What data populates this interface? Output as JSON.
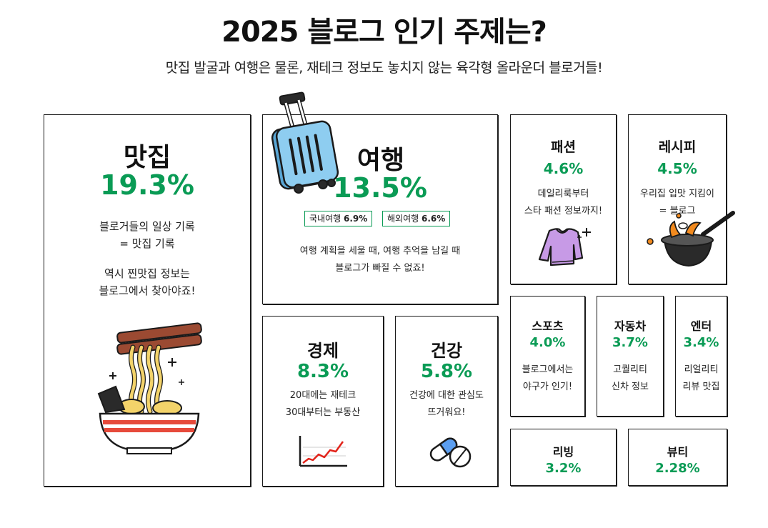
{
  "header": {
    "title": "2025 블로그 인기 주제는?",
    "subtitle": "맛집 발굴과 여행은 물론, 재테크 정보도 놓치지 않는 육각형 올라운더 블로거들!"
  },
  "cards": {
    "food": {
      "name": "맛집",
      "pct": "19.3%",
      "desc1": "블로거들의 일상 기록",
      "desc2": "= 맛집 기록",
      "desc3": "역시 찐맛집 정보는",
      "desc4": "블로그에서 찾아야죠!"
    },
    "travel": {
      "name": "여행",
      "pct": "13.5%",
      "chip1_label": "국내여행",
      "chip1_value": "6.9%",
      "chip2_label": "해외여행",
      "chip2_value": "6.6%",
      "desc1": "여행 계획을 세울 때, 여행 추억을 남길 때",
      "desc2": "블로그가 빠질 수 없죠!"
    },
    "economy": {
      "name": "경제",
      "pct": "8.3%",
      "desc1": "20대에는 재테크",
      "desc2": "30대부터는 부동산"
    },
    "health": {
      "name": "건강",
      "pct": "5.8%",
      "desc1": "건강에 대한 관심도",
      "desc2": "뜨거워요!"
    },
    "fashion": {
      "name": "패션",
      "pct": "4.6%",
      "desc1": "데일리룩부터",
      "desc2": "스타 패션 정보까지!"
    },
    "recipe": {
      "name": "레시피",
      "pct": "4.5%",
      "desc1": "우리집 입맛 지킴이",
      "desc2": "= 블로그"
    },
    "sports": {
      "name": "스포츠",
      "pct": "4.0%",
      "desc1": "블로그에서는",
      "desc2": "야구가 인기!"
    },
    "car": {
      "name": "자동차",
      "pct": "3.7%",
      "desc1": "고퀄리티",
      "desc2": "신차 정보"
    },
    "enter": {
      "name": "엔터",
      "pct": "3.4%",
      "desc1": "리얼리티",
      "desc2": "리뷰 맛집"
    },
    "living": {
      "name": "리빙",
      "pct": "3.2%"
    },
    "beauty": {
      "name": "뷰티",
      "pct": "2.28%"
    }
  },
  "colors": {
    "accent_green": "#0a9b55",
    "suitcase_blue": "#8ecdf0",
    "sweater_purple": "#c79ae6",
    "chart_red": "#e2231a",
    "noodle_yellow": "#f3d36a",
    "bowl_red": "#e64a3b",
    "pill_blue": "#5b9ef0",
    "chopstick_brown": "#9b4a32",
    "wok_orange": "#f28a1e"
  },
  "icons": [
    "ramen-bowl-icon",
    "suitcase-icon",
    "sweater-icon",
    "wok-icon",
    "line-chart-icon",
    "pills-icon"
  ]
}
